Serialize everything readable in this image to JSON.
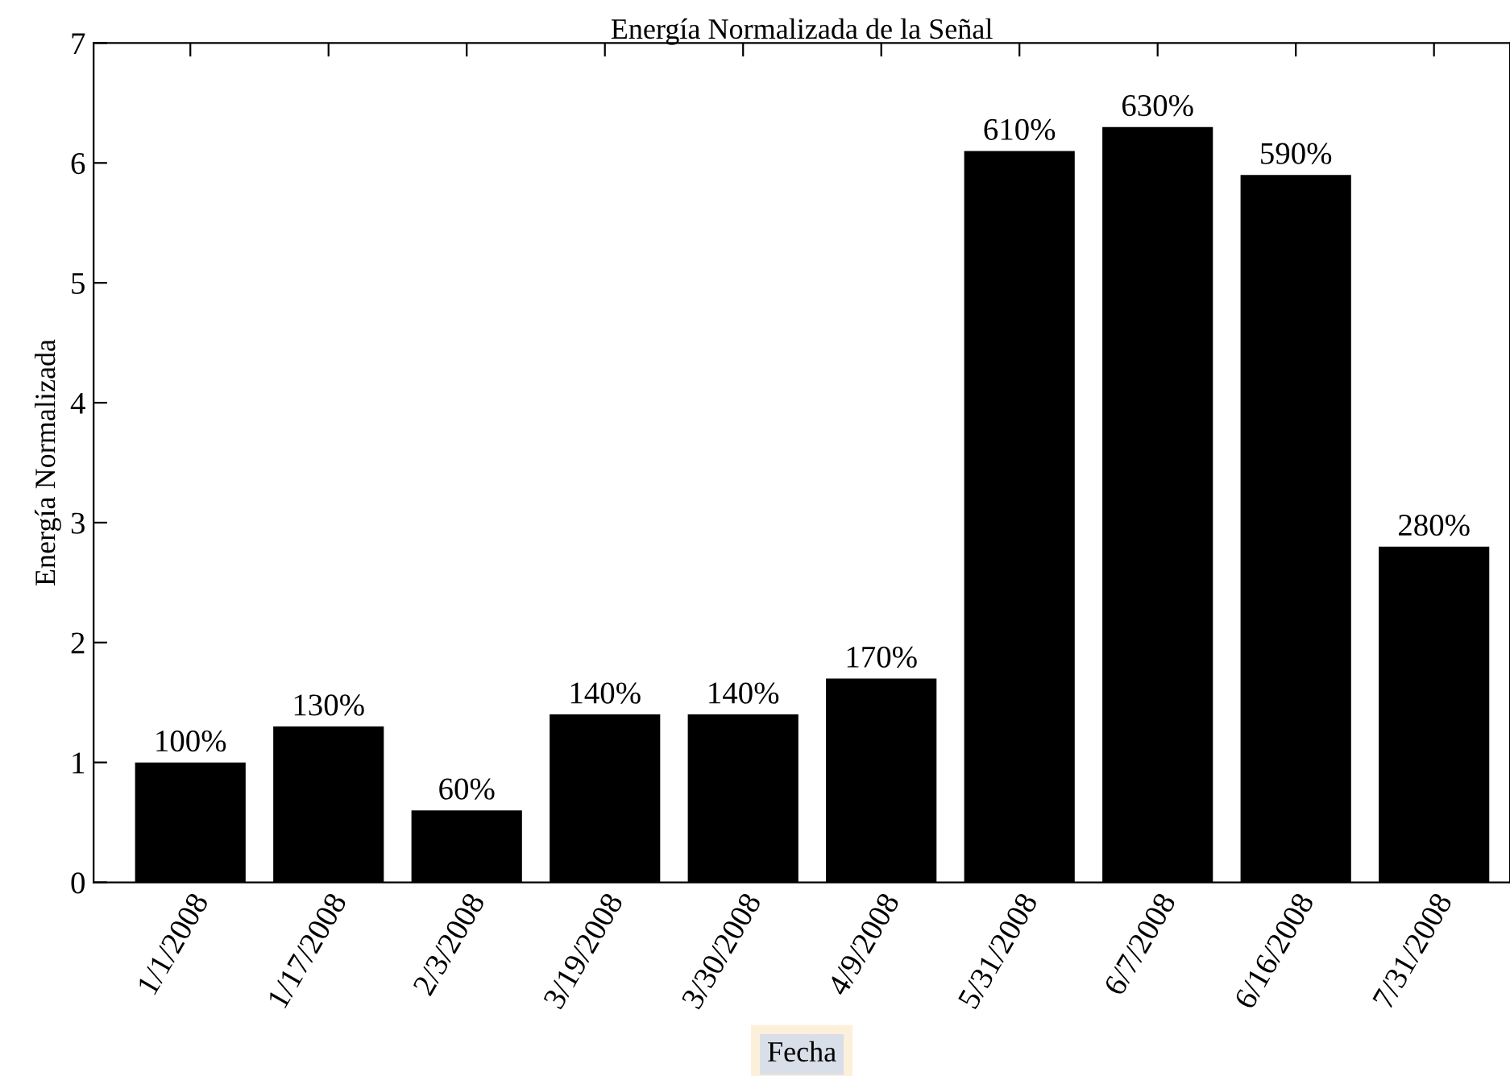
{
  "chart_data": {
    "type": "bar",
    "title": "Energía Normalizada de la Señal",
    "xlabel": "Fecha",
    "ylabel": "Energía Normalizada",
    "categories": [
      "1/1/2008",
      "1/17/2008",
      "2/3/2008",
      "3/19/2008",
      "3/30/2008",
      "4/9/2008",
      "5/31/2008",
      "6/7/2008",
      "6/16/2008",
      "7/31/2008"
    ],
    "values": [
      1.0,
      1.3,
      0.6,
      1.4,
      1.4,
      1.7,
      6.1,
      6.3,
      5.9,
      2.8
    ],
    "value_labels": [
      "100%",
      "130%",
      "60%",
      "140%",
      "140%",
      "170%",
      "610%",
      "630%",
      "590%",
      "280%"
    ],
    "color": "#000000",
    "ylim": [
      0,
      7
    ],
    "yticks": [
      0,
      1,
      2,
      3,
      4,
      5,
      6,
      7
    ],
    "grid": false,
    "legend": false
  }
}
